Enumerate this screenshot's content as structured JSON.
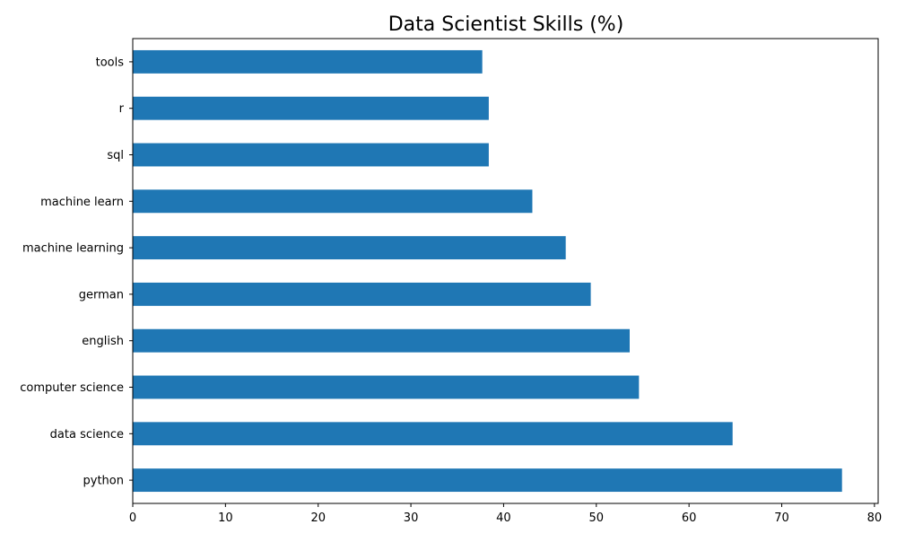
{
  "chart_data": {
    "type": "bar",
    "orientation": "horizontal",
    "title": "Data Scientist Skills (%)",
    "xlabel": "",
    "ylabel": "",
    "categories": [
      "python",
      "data science",
      "computer science",
      "english",
      "german",
      "machine learning",
      "machine learn",
      "sql",
      "r",
      "tools"
    ],
    "values": [
      76.5,
      64.7,
      54.6,
      53.6,
      49.4,
      46.7,
      43.1,
      38.4,
      38.4,
      37.7
    ],
    "xlim": [
      0,
      80.4
    ],
    "xticks": [
      0,
      10,
      20,
      30,
      40,
      50,
      60,
      70,
      80
    ],
    "grid": false,
    "bar_color": "#1f77b4"
  }
}
